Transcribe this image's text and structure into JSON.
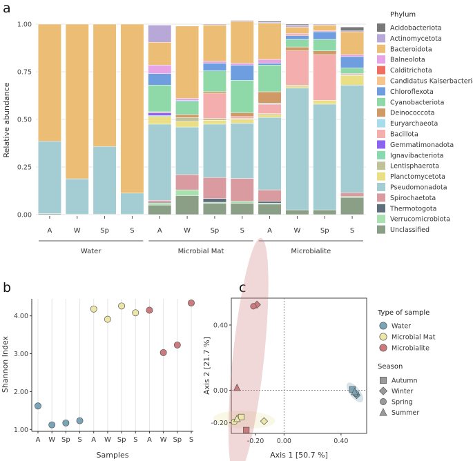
{
  "chart_data": [
    {
      "panel_label": "a",
      "type": "stacked_bar",
      "ylabel": "Relative abundance",
      "ylim": [
        0,
        1
      ],
      "yticks": [
        "0.00",
        "0.25",
        "0.50",
        "0.75",
        "1.00"
      ],
      "legend_title": "Phylum",
      "legend_position": "right",
      "group_labels": [
        "Water",
        "Microbial Mat",
        "Microbialite"
      ],
      "categories": [
        "A",
        "W",
        "Sp",
        "S",
        "A",
        "W",
        "Sp",
        "S",
        "A",
        "W",
        "Sp",
        "S"
      ],
      "series": [
        {
          "name": "Unclassified",
          "color": "#8a9f86",
          "values": [
            0.005,
            0.003,
            0.003,
            0.003,
            0.05,
            0.1,
            0.06,
            0.06,
            0.055,
            0.025,
            0.025,
            0.09
          ]
        },
        {
          "name": "Verrucomicrobiota",
          "color": "#a8e0b0",
          "values": [
            0,
            0,
            0,
            0,
            0.01,
            0.03,
            0.005,
            0.01,
            0.005,
            0,
            0,
            0.005
          ]
        },
        {
          "name": "Thermotogota",
          "color": "#5f6e7a",
          "values": [
            0,
            0,
            0,
            0,
            0.005,
            0,
            0.02,
            0,
            0.01,
            0,
            0,
            0
          ]
        },
        {
          "name": "Spirochaetota",
          "color": "#d99aa0",
          "values": [
            0,
            0,
            0,
            0,
            0.01,
            0.08,
            0.11,
            0.12,
            0.06,
            0,
            0,
            0.02
          ]
        },
        {
          "name": "Pseudomonadota",
          "color": "#a3cdd2",
          "values": [
            0.38,
            0.185,
            0.355,
            0.11,
            0.4,
            0.25,
            0.28,
            0.29,
            0.38,
            0.64,
            0.555,
            0.565
          ]
        },
        {
          "name": "Planctomycetota",
          "color": "#eadf85",
          "values": [
            0,
            0,
            0,
            0,
            0.04,
            0.03,
            0.02,
            0.02,
            0.015,
            0.01,
            0.02,
            0.05
          ]
        },
        {
          "name": "Lentisphaerota",
          "color": "#c0c39a",
          "values": [
            0,
            0,
            0,
            0,
            0,
            0.02,
            0.01,
            0.005,
            0.005,
            0.005,
            0,
            0.005
          ]
        },
        {
          "name": "Ignavibacteriota",
          "color": "#88d8b0",
          "values": [
            0,
            0,
            0,
            0,
            0.005,
            0,
            0,
            0,
            0,
            0,
            0,
            0
          ]
        },
        {
          "name": "Gemmatimonadota",
          "color": "#8a63f0",
          "values": [
            0,
            0,
            0,
            0,
            0.015,
            0,
            0,
            0,
            0,
            0,
            0,
            0
          ]
        },
        {
          "name": "Bacillota",
          "color": "#f5aeae",
          "values": [
            0,
            0,
            0,
            0,
            0.005,
            0,
            0.13,
            0.01,
            0.05,
            0.18,
            0.24,
            0.005
          ]
        },
        {
          "name": "Euryarchaeota",
          "color": "#a7dcea",
          "values": [
            0,
            0,
            0,
            0,
            0,
            0,
            0,
            0,
            0.005,
            0,
            0,
            0
          ]
        },
        {
          "name": "Deinococcota",
          "color": "#cf9a66",
          "values": [
            0,
            0,
            0,
            0,
            0,
            0.015,
            0.01,
            0.02,
            0.06,
            0.02,
            0.02,
            0
          ]
        },
        {
          "name": "Cyanobacteriota",
          "color": "#8fd9a8",
          "values": [
            0,
            0,
            0,
            0,
            0.14,
            0.07,
            0.11,
            0.17,
            0.14,
            0.04,
            0.06,
            0.03
          ]
        },
        {
          "name": "Chloroflexota",
          "color": "#6f9ee0",
          "values": [
            0,
            0,
            0,
            0,
            0.06,
            0.005,
            0.04,
            0.08,
            0.01,
            0.02,
            0.04,
            0.06
          ]
        },
        {
          "name": "Candidatus Kaiserbacteria",
          "color": "#f6c48c",
          "values": [
            0,
            0,
            0,
            0,
            0,
            0,
            0,
            0,
            0,
            0,
            0,
            0
          ]
        },
        {
          "name": "Calditrichota",
          "color": "#ee6f5f",
          "values": [
            0,
            0,
            0,
            0,
            0,
            0,
            0,
            0,
            0,
            0.005,
            0,
            0
          ]
        },
        {
          "name": "Balneolota",
          "color": "#e6a3e6",
          "values": [
            0,
            0,
            0,
            0,
            0.045,
            0.01,
            0.01,
            0.01,
            0.02,
            0.005,
            0.005,
            0.01
          ]
        },
        {
          "name": "Bacteroidota",
          "color": "#ecbd74",
          "values": [
            0.615,
            0.812,
            0.642,
            0.887,
            0.12,
            0.38,
            0.19,
            0.22,
            0.19,
            0.035,
            0.03,
            0.12
          ]
        },
        {
          "name": "Actinomycetota",
          "color": "#b8a8d8",
          "values": [
            0,
            0,
            0,
            0,
            0.09,
            0,
            0.005,
            0.005,
            0.005,
            0.01,
            0.005,
            0.005
          ]
        },
        {
          "name": "Acidobacteriota",
          "color": "#787878",
          "values": [
            0,
            0,
            0,
            0,
            0,
            0,
            0,
            0,
            0.005,
            0.005,
            0,
            0.02
          ]
        }
      ],
      "legend_order": [
        "Acidobacteriota",
        "Actinomycetota",
        "Bacteroidota",
        "Balneolota",
        "Calditrichota",
        "Candidatus Kaiserbacteria",
        "Chloroflexota",
        "Cyanobacteriota",
        "Deinococcota",
        "Euryarchaeota",
        "Bacillota",
        "Gemmatimonadota",
        "Ignavibacteriota",
        "Lentisphaerota",
        "Planctomycetota",
        "Pseudomonadota",
        "Spirochaetota",
        "Thermotogota",
        "Verrucomicrobiota",
        "Unclassified"
      ]
    },
    {
      "panel_label": "b",
      "type": "scatter",
      "xlabel": "Samples",
      "ylabel": "Shannon Index",
      "ylim": [
        0.95,
        4.45
      ],
      "yticks": [
        "1.00",
        "2.00",
        "3.00",
        "4.00"
      ],
      "categories": [
        "A",
        "W",
        "Sp",
        "S",
        "A",
        "W",
        "Sp",
        "S",
        "A",
        "W",
        "Sp",
        "S"
      ],
      "values": [
        1.62,
        1.12,
        1.17,
        1.23,
        4.18,
        3.91,
        4.26,
        4.08,
        4.15,
        3.03,
        3.23,
        4.34
      ],
      "groups": [
        "Water",
        "Water",
        "Water",
        "Water",
        "Microbial Mat",
        "Microbial Mat",
        "Microbial Mat",
        "Microbial Mat",
        "Microbialite",
        "Microbialite",
        "Microbialite",
        "Microbialite"
      ]
    },
    {
      "panel_label": "c",
      "type": "scatter",
      "xlabel": "Axis 1 [50.7 %]",
      "ylabel": "Axis 2 [21.7 %]",
      "xlim": [
        -0.37,
        0.58
      ],
      "ylim": [
        -0.265,
        0.565
      ],
      "xticks": [
        "-0.20",
        "0.00",
        "0.40"
      ],
      "yticks": [
        "-0.20",
        "0.00",
        "0.40"
      ],
      "points": [
        {
          "type": "Water",
          "season": "Autumn",
          "x": 0.48,
          "y": 0.005
        },
        {
          "type": "Water",
          "season": "Winter",
          "x": 0.51,
          "y": -0.03
        },
        {
          "type": "Water",
          "season": "Spring",
          "x": 0.505,
          "y": -0.02
        },
        {
          "type": "Water",
          "season": "Summer",
          "x": 0.495,
          "y": -0.01
        },
        {
          "type": "Microbial Mat",
          "season": "Autumn",
          "x": -0.3,
          "y": -0.165
        },
        {
          "type": "Microbial Mat",
          "season": "Winter",
          "x": -0.14,
          "y": -0.19
        },
        {
          "type": "Microbial Mat",
          "season": "Spring",
          "x": -0.35,
          "y": -0.195
        },
        {
          "type": "Microbial Mat",
          "season": "Summer",
          "x": -0.33,
          "y": -0.175
        },
        {
          "type": "Microbialite",
          "season": "Autumn",
          "x": -0.265,
          "y": -0.245
        },
        {
          "type": "Microbialite",
          "season": "Winter",
          "x": -0.19,
          "y": 0.525
        },
        {
          "type": "Microbialite",
          "season": "Spring",
          "x": -0.215,
          "y": 0.515
        },
        {
          "type": "Microbialite",
          "season": "Summer",
          "x": -0.33,
          "y": 0.015
        }
      ],
      "legend_type_title": "Type of sample",
      "legend_types": [
        {
          "name": "Water",
          "color": "#7aa5b9"
        },
        {
          "name": "Microbial Mat",
          "color": "#ece6a8"
        },
        {
          "name": "Microbialite",
          "color": "#cc7a7d"
        }
      ],
      "legend_season_title": "Season",
      "legend_seasons": [
        "Autumn",
        "Winter",
        "Spring",
        "Summer"
      ]
    }
  ]
}
